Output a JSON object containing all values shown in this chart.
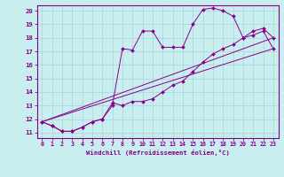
{
  "xlabel": "Windchill (Refroidissement éolien,°C)",
  "bg_color": "#c8eef0",
  "grid_color": "#b0d8dc",
  "line_color": "#880088",
  "xlim": [
    -0.5,
    23.5
  ],
  "ylim": [
    10.6,
    20.4
  ],
  "yticks": [
    11,
    12,
    13,
    14,
    15,
    16,
    17,
    18,
    19,
    20
  ],
  "xticks": [
    0,
    1,
    2,
    3,
    4,
    5,
    6,
    7,
    8,
    9,
    10,
    11,
    12,
    13,
    14,
    15,
    16,
    17,
    18,
    19,
    20,
    21,
    22,
    23
  ],
  "line1_x": [
    0,
    1,
    2,
    3,
    4,
    5,
    6,
    7,
    8,
    9,
    10,
    11,
    12,
    13,
    14,
    15,
    16,
    17,
    18,
    19,
    20,
    21,
    22,
    23
  ],
  "line1_y": [
    11.8,
    11.5,
    11.1,
    11.1,
    11.4,
    11.8,
    12.0,
    13.0,
    17.2,
    17.1,
    18.5,
    18.5,
    17.3,
    17.3,
    17.3,
    19.0,
    20.1,
    20.2,
    20.0,
    19.6,
    18.0,
    18.5,
    18.7,
    18.0
  ],
  "line2_x": [
    0,
    1,
    2,
    3,
    4,
    5,
    6,
    7,
    8,
    9,
    10,
    11,
    12,
    13,
    14,
    15,
    16,
    17,
    18,
    19,
    20,
    21,
    22,
    23
  ],
  "line2_y": [
    11.8,
    11.5,
    11.1,
    11.1,
    11.4,
    11.8,
    12.0,
    13.2,
    13.0,
    13.3,
    13.3,
    13.5,
    14.0,
    14.5,
    14.8,
    15.5,
    16.2,
    16.8,
    17.2,
    17.5,
    18.0,
    18.2,
    18.5,
    17.2
  ],
  "line3_x": [
    0,
    23
  ],
  "line3_y": [
    11.8,
    17.2
  ],
  "line4_x": [
    0,
    23
  ],
  "line4_y": [
    11.8,
    18.0
  ],
  "marker": "D",
  "markersize": 2.0,
  "linewidth": 0.7
}
